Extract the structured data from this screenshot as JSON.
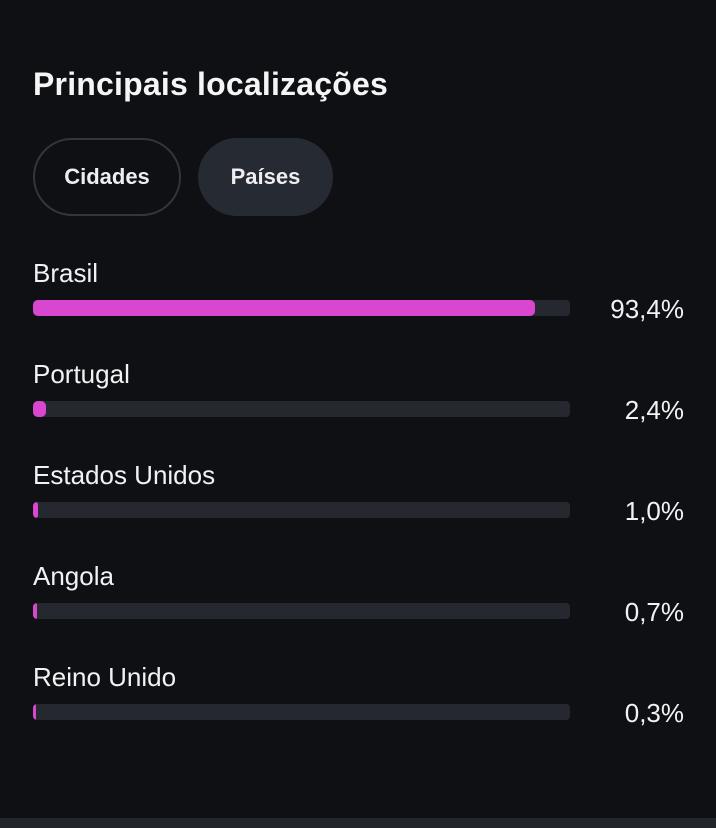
{
  "header": {
    "title": "Principais localizações"
  },
  "tabs": [
    {
      "label": "Cidades",
      "selected": false
    },
    {
      "label": "Países",
      "selected": true
    }
  ],
  "accent_color": "#d946cf",
  "locations": [
    {
      "name": "Brasil",
      "percent_label": "93,4%",
      "value": 93.4
    },
    {
      "name": "Portugal",
      "percent_label": "2,4%",
      "value": 2.4
    },
    {
      "name": "Estados Unidos",
      "percent_label": "1,0%",
      "value": 1.0
    },
    {
      "name": "Angola",
      "percent_label": "0,7%",
      "value": 0.7
    },
    {
      "name": "Reino Unido",
      "percent_label": "0,3%",
      "value": 0.3
    }
  ]
}
